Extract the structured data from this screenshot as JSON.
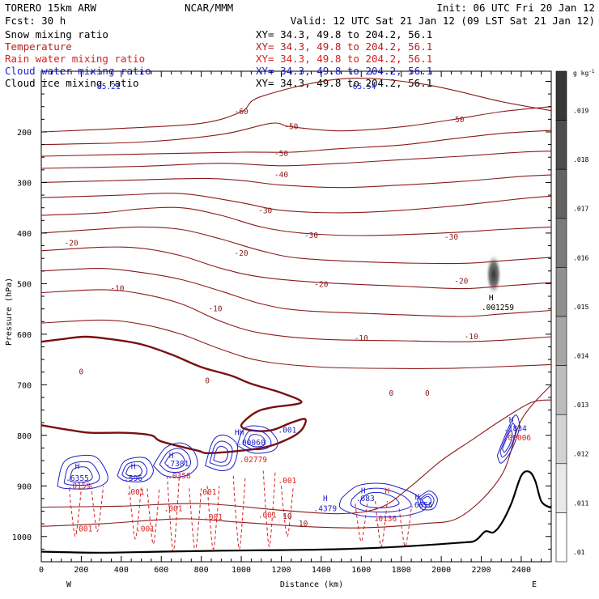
{
  "header": {
    "model": "TORERO  15km ARW",
    "org": "NCAR/MMM",
    "init": "Init: 06 UTC Fri 20 Jan 12",
    "fcst": "Fcst:   30 h",
    "valid": "Valid: 12 UTC Sat 21 Jan 12 (09 LST Sat 21 Jan 12)"
  },
  "fields": [
    {
      "name": "Snow mixing ratio",
      "xy": "XY=  34.3, 49.8 to 204.2, 56.1",
      "color": "#000000"
    },
    {
      "name": "Temperature",
      "xy": "XY=  34.3, 49.8 to 204.2, 56.1",
      "color": "#b22222"
    },
    {
      "name": "Rain water mixing ratio",
      "xy": "XY=  34.3, 49.8 to 204.2, 56.1",
      "color": "#d62020"
    },
    {
      "name": "Cloud water mixing ratio",
      "xy": "XY=  34.3, 49.8 to 204.2, 56.1",
      "color": "#1f1fc8"
    },
    {
      "name": "Cloud ice mixing ratio",
      "xy": "XY=  34.3, 49.8 to 204.2, 56.1",
      "color": "#000000"
    }
  ],
  "colors": {
    "temperature": "#8b1a1a",
    "zero_isotherm": "#7a0f0f",
    "rain": "#d62020",
    "cloud": "#1f1fc8",
    "terrain": "#000000",
    "snow": "#555555"
  },
  "chart_data": {
    "type": "contour-cross-section",
    "xlabel": "Distance (km)",
    "ylabel": "Pressure (hPa)",
    "xlim": [
      0,
      2550
    ],
    "ylim": [
      1050,
      80
    ],
    "x_ticks": [
      0,
      200,
      400,
      600,
      800,
      1000,
      1200,
      1400,
      1600,
      1800,
      2000,
      2200,
      2400
    ],
    "y_ticks": [
      200,
      300,
      400,
      500,
      600,
      700,
      800,
      900,
      1000
    ],
    "x_minor_step": 50,
    "y_minor_step": 25,
    "end_labels": {
      "left": "W",
      "right": "E"
    },
    "colorbar": {
      "unit": "g kg",
      "unit_sup": "-1",
      "ticks": [
        ".01",
        ".011",
        ".012",
        ".013",
        ".014",
        ".015",
        ".016",
        ".017",
        ".018",
        ".019"
      ]
    },
    "snow_maximum": {
      "label": "H",
      "value": ".001259",
      "x": 2250,
      "y": 530
    },
    "isotherms": [
      {
        "level": -60,
        "points": [
          [
            0,
            200
          ],
          [
            400,
            193
          ],
          [
            800,
            183
          ],
          [
            1000,
            160
          ],
          [
            1100,
            130
          ],
          [
            1500,
            95
          ],
          [
            1900,
            105
          ],
          [
            2300,
            140
          ],
          [
            2550,
            158
          ]
        ]
      },
      {
        "level": -50,
        "points": [
          [
            0,
            225
          ],
          [
            500,
            220
          ],
          [
            900,
            205
          ],
          [
            1150,
            183
          ],
          [
            1250,
            190
          ],
          [
            1500,
            198
          ],
          [
            1800,
            190
          ],
          [
            2050,
            176
          ],
          [
            2300,
            160
          ],
          [
            2550,
            150
          ]
        ]
      },
      {
        "level": -50,
        "points": [
          [
            0,
            248
          ],
          [
            600,
            243
          ],
          [
            1000,
            240
          ],
          [
            1250,
            240
          ],
          [
            1500,
            233
          ],
          [
            1800,
            226
          ],
          [
            2050,
            214
          ],
          [
            2300,
            203
          ],
          [
            2550,
            197
          ]
        ]
      },
      {
        "level": -40,
        "points": [
          [
            0,
            272
          ],
          [
            500,
            268
          ],
          [
            900,
            262
          ],
          [
            1200,
            267
          ],
          [
            1500,
            262
          ],
          [
            1800,
            255
          ],
          [
            2100,
            248
          ],
          [
            2400,
            240
          ],
          [
            2550,
            238
          ]
        ]
      },
      {
        "level": -40,
        "points": [
          [
            0,
            300
          ],
          [
            400,
            296
          ],
          [
            800,
            292
          ],
          [
            1000,
            296
          ],
          [
            1200,
            305
          ],
          [
            1500,
            310
          ],
          [
            1800,
            305
          ],
          [
            2100,
            298
          ],
          [
            2400,
            288
          ],
          [
            2550,
            285
          ]
        ]
      },
      {
        "level": -30,
        "points": [
          [
            0,
            330
          ],
          [
            400,
            325
          ],
          [
            700,
            322
          ],
          [
            1000,
            340
          ],
          [
            1200,
            355
          ],
          [
            1500,
            360
          ],
          [
            1800,
            355
          ],
          [
            2100,
            345
          ],
          [
            2400,
            332
          ],
          [
            2550,
            327
          ]
        ]
      },
      {
        "level": -30,
        "points": [
          [
            0,
            365
          ],
          [
            300,
            360
          ],
          [
            500,
            352
          ],
          [
            700,
            350
          ],
          [
            900,
            365
          ],
          [
            1100,
            388
          ],
          [
            1300,
            400
          ],
          [
            1600,
            405
          ],
          [
            2000,
            400
          ],
          [
            2300,
            393
          ],
          [
            2550,
            388
          ]
        ]
      },
      {
        "level": -20,
        "points": [
          [
            0,
            400
          ],
          [
            300,
            392
          ],
          [
            500,
            388
          ],
          [
            700,
            393
          ],
          [
            900,
            412
          ],
          [
            1100,
            435
          ],
          [
            1300,
            450
          ],
          [
            1700,
            458
          ],
          [
            2100,
            460
          ],
          [
            2300,
            455
          ],
          [
            2550,
            448
          ]
        ]
      },
      {
        "level": -20,
        "points": [
          [
            0,
            435
          ],
          [
            300,
            428
          ],
          [
            500,
            430
          ],
          [
            700,
            445
          ],
          [
            900,
            470
          ],
          [
            1100,
            487
          ],
          [
            1400,
            498
          ],
          [
            1800,
            505
          ],
          [
            2100,
            510
          ],
          [
            2300,
            505
          ],
          [
            2550,
            498
          ]
        ]
      },
      {
        "level": -10,
        "points": [
          [
            0,
            475
          ],
          [
            300,
            470
          ],
          [
            500,
            478
          ],
          [
            700,
            492
          ],
          [
            900,
            515
          ],
          [
            1100,
            540
          ],
          [
            1300,
            553
          ],
          [
            1700,
            560
          ],
          [
            2100,
            565
          ],
          [
            2300,
            560
          ],
          [
            2550,
            553
          ]
        ]
      },
      {
        "level": -10,
        "points": [
          [
            0,
            518
          ],
          [
            300,
            512
          ],
          [
            500,
            520
          ],
          [
            700,
            540
          ],
          [
            900,
            575
          ],
          [
            1100,
            598
          ],
          [
            1400,
            610
          ],
          [
            1800,
            613
          ],
          [
            2100,
            615
          ],
          [
            2300,
            612
          ],
          [
            2550,
            605
          ]
        ]
      },
      {
        "level": 0,
        "points": [
          [
            0,
            578
          ],
          [
            300,
            572
          ],
          [
            500,
            580
          ],
          [
            700,
            600
          ],
          [
            900,
            630
          ],
          [
            1100,
            653
          ],
          [
            1400,
            665
          ],
          [
            1800,
            668
          ],
          [
            2100,
            667
          ],
          [
            2550,
            660
          ]
        ]
      },
      {
        "level": 10,
        "points": [
          [
            0,
            980
          ],
          [
            300,
            975
          ],
          [
            700,
            965
          ],
          [
            1000,
            972
          ],
          [
            1300,
            980
          ],
          [
            1600,
            983
          ],
          [
            1900,
            975
          ],
          [
            2100,
            960
          ],
          [
            2300,
            880
          ],
          [
            2400,
            770
          ],
          [
            2550,
            700
          ]
        ]
      },
      {
        "level": 10,
        "points": [
          [
            0,
            942
          ],
          [
            400,
            940
          ],
          [
            800,
            935
          ],
          [
            1200,
            948
          ],
          [
            1500,
            955
          ],
          [
            1700,
            942
          ],
          [
            1850,
            900
          ],
          [
            2000,
            850
          ],
          [
            2150,
            810
          ],
          [
            2300,
            770
          ],
          [
            2450,
            735
          ],
          [
            2550,
            730
          ]
        ]
      }
    ],
    "isotherm_labels": [
      {
        "text": "-60",
        "x": 1000,
        "y": 160
      },
      {
        "text": "-50",
        "x": 1250,
        "y": 190
      },
      {
        "text": "-50",
        "x": 2080,
        "y": 176
      },
      {
        "text": "-50",
        "x": 1200,
        "y": 243
      },
      {
        "text": "-40",
        "x": 1200,
        "y": 285
      },
      {
        "text": "-30",
        "x": 1120,
        "y": 356
      },
      {
        "text": "-30",
        "x": 1350,
        "y": 405
      },
      {
        "text": "-30",
        "x": 2050,
        "y": 408
      },
      {
        "text": "-20",
        "x": 150,
        "y": 420
      },
      {
        "text": "-20",
        "x": 1000,
        "y": 440
      },
      {
        "text": "-20",
        "x": 1400,
        "y": 502
      },
      {
        "text": "-20",
        "x": 2100,
        "y": 495
      },
      {
        "text": "-10",
        "x": 380,
        "y": 510
      },
      {
        "text": "-10",
        "x": 870,
        "y": 550
      },
      {
        "text": "-10",
        "x": 1600,
        "y": 608
      },
      {
        "text": "-10",
        "x": 2150,
        "y": 605
      },
      {
        "text": "0",
        "x": 200,
        "y": 675
      },
      {
        "text": "0",
        "x": 830,
        "y": 692
      },
      {
        "text": "0",
        "x": 1750,
        "y": 717
      },
      {
        "text": "0",
        "x": 1930,
        "y": 717
      },
      {
        "text": "10",
        "x": 1230,
        "y": 960
      },
      {
        "text": "10",
        "x": 1310,
        "y": 975
      }
    ],
    "zero_isotherm": [
      [
        0,
        615
      ],
      [
        100,
        610
      ],
      [
        220,
        605
      ],
      [
        350,
        610
      ],
      [
        500,
        620
      ],
      [
        650,
        640
      ],
      [
        800,
        665
      ],
      [
        950,
        682
      ],
      [
        1050,
        698
      ],
      [
        1200,
        716
      ],
      [
        1300,
        735
      ],
      [
        1150,
        745
      ],
      [
        1070,
        755
      ],
      [
        1000,
        780
      ],
      [
        1050,
        790
      ],
      [
        1150,
        790
      ],
      [
        1250,
        775
      ],
      [
        1320,
        768
      ],
      [
        1300,
        790
      ],
      [
        1230,
        808
      ],
      [
        1100,
        825
      ],
      [
        850,
        835
      ],
      [
        780,
        830
      ],
      [
        600,
        812
      ],
      [
        550,
        800
      ],
      [
        420,
        795
      ],
      [
        250,
        795
      ],
      [
        150,
        790
      ],
      [
        0,
        780
      ]
    ],
    "cloud_water_labels": [
      {
        "text": "H",
        "x": 180,
        "y": 862
      },
      {
        "text": ".6355",
        "x": 180,
        "y": 885
      },
      {
        "text": "H",
        "x": 460,
        "y": 862
      },
      {
        "text": ".596",
        "x": 460,
        "y": 885
      },
      {
        "text": "H",
        "x": 650,
        "y": 840
      },
      {
        "text": ".7381",
        "x": 680,
        "y": 856
      },
      {
        "text": "HH",
        "x": 990,
        "y": 795
      },
      {
        "text": ".00060",
        "x": 1050,
        "y": 815
      },
      {
        "text": ".001",
        "x": 1230,
        "y": 790
      },
      {
        "text": "H",
        "x": 1420,
        "y": 925
      },
      {
        "text": ".4379",
        "x": 1420,
        "y": 945
      },
      {
        "text": "H",
        "x": 1610,
        "y": 910
      },
      {
        "text": ".683",
        "x": 1620,
        "y": 925
      },
      {
        "text": "H",
        "x": 1880,
        "y": 922
      },
      {
        "text": ".6656",
        "x": 1900,
        "y": 938
      },
      {
        "text": "H",
        "x": 2350,
        "y": 770
      },
      {
        "text": ".1834",
        "x": 2370,
        "y": 787
      }
    ],
    "rain_labels": [
      {
        "text": ".0159",
        "x": 190,
        "y": 900
      },
      {
        "text": ".0358",
        "x": 690,
        "y": 880
      },
      {
        "text": ".02779",
        "x": 1060,
        "y": 848
      },
      {
        "text": ".001",
        "x": 470,
        "y": 912
      },
      {
        "text": ".001",
        "x": 660,
        "y": 945
      },
      {
        "text": ".001",
        "x": 830,
        "y": 912
      },
      {
        "text": ".001",
        "x": 860,
        "y": 962
      },
      {
        "text": ".001",
        "x": 1130,
        "y": 958
      },
      {
        "text": ".001",
        "x": 1230,
        "y": 890
      },
      {
        "text": ".001",
        "x": 210,
        "y": 985
      },
      {
        "text": ".001",
        "x": 520,
        "y": 985
      },
      {
        "text": ".0136",
        "x": 1720,
        "y": 965
      },
      {
        "text": ".00006",
        "x": 2380,
        "y": 805
      },
      {
        "text": "H",
        "x": 1730,
        "y": 910
      }
    ],
    "overlap_labels": [
      {
        "text": "65.21",
        "x": 120,
        "y": 98
      },
      {
        "text": "-65.54",
        "x": 430,
        "y": 98
      }
    ],
    "terrain": [
      [
        0,
        1030
      ],
      [
        300,
        1032
      ],
      [
        600,
        1030
      ],
      [
        900,
        1028
      ],
      [
        1200,
        1027
      ],
      [
        1500,
        1025
      ],
      [
        1800,
        1020
      ],
      [
        2100,
        1012
      ],
      [
        2170,
        1008
      ],
      [
        2220,
        990
      ],
      [
        2260,
        992
      ],
      [
        2300,
        975
      ],
      [
        2350,
        935
      ],
      [
        2400,
        880
      ],
      [
        2440,
        872
      ],
      [
        2470,
        890
      ],
      [
        2500,
        930
      ],
      [
        2540,
        942
      ],
      [
        2550,
        940
      ]
    ]
  }
}
